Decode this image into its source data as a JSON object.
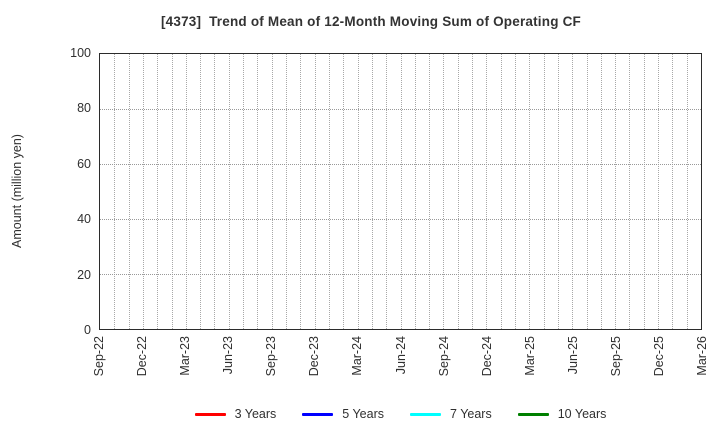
{
  "chart_data": {
    "type": "line",
    "title": "[4373]  Trend of Mean of 12-Month Moving Sum of Operating CF",
    "ylabel": "Amount (million yen)",
    "xlabel": "",
    "ylim": [
      0,
      100
    ],
    "yticks": [
      0,
      20,
      40,
      60,
      80,
      100
    ],
    "x_tick_labels": [
      "Sep-22",
      "Dec-22",
      "Mar-23",
      "Jun-23",
      "Sep-23",
      "Dec-23",
      "Mar-24",
      "Jun-24",
      "Sep-24",
      "Dec-24",
      "Mar-25",
      "Jun-25",
      "Sep-25",
      "Dec-25",
      "Mar-26"
    ],
    "x_total_months": 42,
    "x_tick_step_months": 3,
    "grid": {
      "style": "dotted",
      "vertical": "monthly",
      "horizontal": "every 20 units"
    },
    "legend": {
      "position": "bottom-center"
    },
    "series": [
      {
        "name": "3 Years",
        "color": "#ff0000",
        "values": []
      },
      {
        "name": "5 Years",
        "color": "#0000ff",
        "values": []
      },
      {
        "name": "7 Years",
        "color": "#00ffff",
        "values": []
      },
      {
        "name": "10 Years",
        "color": "#008000",
        "values": []
      }
    ],
    "plotted_data_note": "axes are empty - no series data is drawn in the plot area"
  },
  "colors": {
    "text": "#303030",
    "axis_border": "#2b2b2b",
    "grid": "#a0a0a0",
    "background": "#ffffff"
  }
}
